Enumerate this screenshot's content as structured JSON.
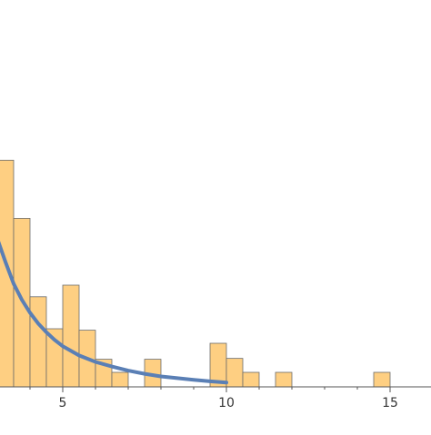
{
  "chart_data": {
    "type": "bar",
    "title": "",
    "xlabel": "",
    "ylabel": "",
    "xlim": [
      3,
      15.5
    ],
    "ylim": [
      0,
      15
    ],
    "bin_width": 0.5,
    "x_ticks": [
      {
        "value": 5,
        "label": "5"
      },
      {
        "value": 10,
        "label": "10"
      },
      {
        "value": 15,
        "label": "15"
      }
    ],
    "bins": [
      {
        "x": 3.0,
        "height": 7.8
      },
      {
        "x": 3.5,
        "height": 5.8
      },
      {
        "x": 4.0,
        "height": 3.1
      },
      {
        "x": 4.5,
        "height": 2.0
      },
      {
        "x": 5.0,
        "height": 3.5
      },
      {
        "x": 5.5,
        "height": 1.95
      },
      {
        "x": 6.0,
        "height": 0.95
      },
      {
        "x": 6.5,
        "height": 0.5
      },
      {
        "x": 7.5,
        "height": 0.95
      },
      {
        "x": 9.5,
        "height": 1.5
      },
      {
        "x": 10.0,
        "height": 0.98
      },
      {
        "x": 10.5,
        "height": 0.5
      },
      {
        "x": 11.5,
        "height": 0.5
      },
      {
        "x": 14.5,
        "height": 0.5
      }
    ],
    "fit_curve": {
      "x": [
        2.8,
        3.0,
        3.25,
        3.5,
        3.75,
        4.0,
        4.25,
        4.5,
        4.75,
        5.0,
        5.5,
        6.0,
        6.5,
        7.0,
        7.5,
        8.0,
        8.5,
        9.0,
        9.5,
        10.0
      ],
      "y": [
        6.0,
        5.1,
        4.3,
        3.55,
        3.0,
        2.55,
        2.18,
        1.88,
        1.62,
        1.4,
        1.08,
        0.86,
        0.7,
        0.56,
        0.45,
        0.36,
        0.3,
        0.24,
        0.19,
        0.15
      ]
    },
    "colors": {
      "bar_fill": "#fecf82",
      "bar_stroke": "#6b6b6b",
      "curve": "#5a7fb5",
      "axis": "#555555",
      "tick_label": "#333333"
    }
  }
}
